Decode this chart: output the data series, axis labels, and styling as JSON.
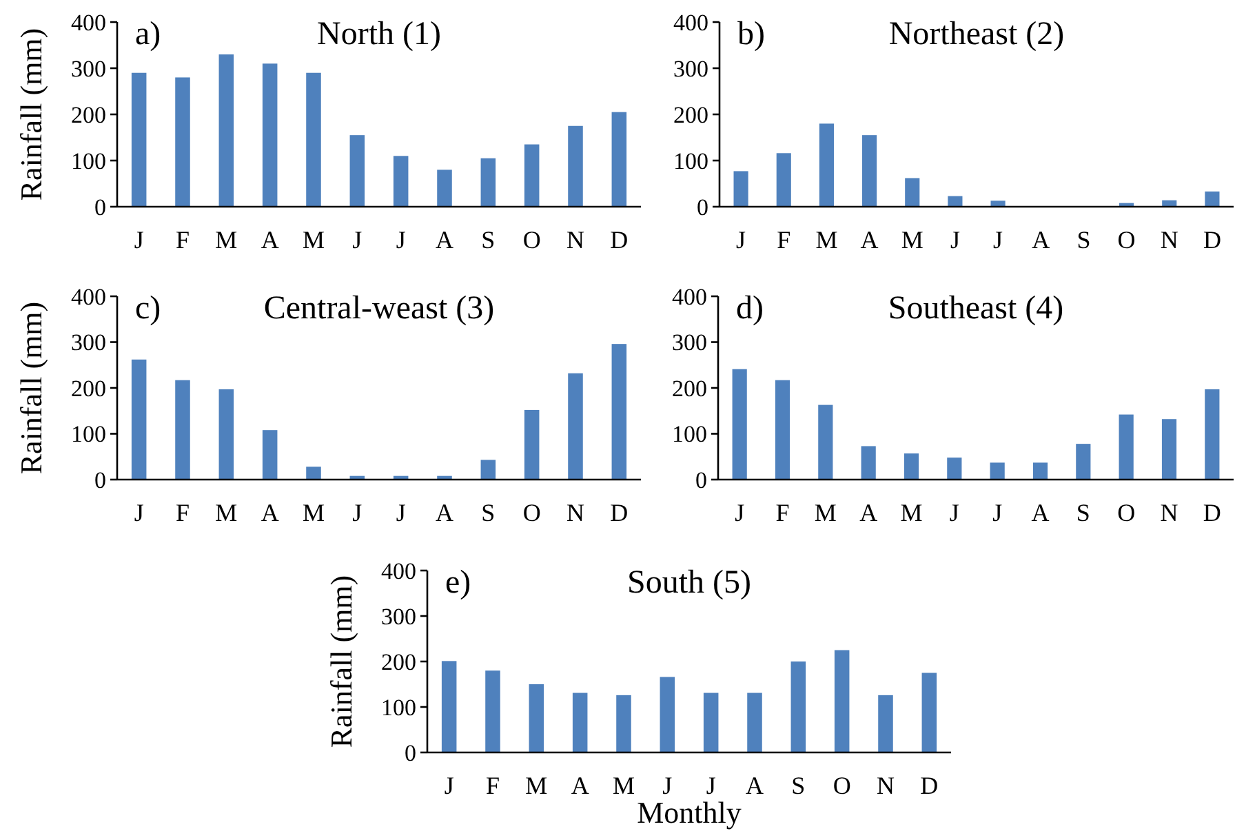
{
  "chart_data": [
    {
      "type": "bar",
      "title": "North (1)",
      "annotations": [
        "a)"
      ],
      "ylabel": "Rainfall (mm)",
      "categories": [
        "J",
        "F",
        "M",
        "A",
        "M",
        "J",
        "J",
        "A",
        "S",
        "O",
        "N",
        "D"
      ],
      "values": [
        290,
        280,
        330,
        310,
        290,
        155,
        110,
        80,
        105,
        135,
        175,
        205
      ],
      "color": "#4f81bd",
      "ylim": [
        0,
        400
      ],
      "yticks": [
        0,
        100,
        200,
        300,
        400
      ]
    },
    {
      "type": "bar",
      "title": "Northeast (2)",
      "annotations": [
        "b)"
      ],
      "categories": [
        "J",
        "F",
        "M",
        "A",
        "M",
        "J",
        "J",
        "A",
        "S",
        "O",
        "N",
        "D"
      ],
      "values": [
        77,
        116,
        180,
        155,
        62,
        23,
        13,
        0,
        0,
        8,
        14,
        33
      ],
      "color": "#4f81bd",
      "ylim": [
        0,
        400
      ],
      "yticks": [
        0,
        100,
        200,
        300,
        400
      ]
    },
    {
      "type": "bar",
      "title": "Central-weast (3)",
      "annotations": [
        "c)"
      ],
      "ylabel": "Rainfall (mm)",
      "categories": [
        "J",
        "F",
        "M",
        "A",
        "M",
        "J",
        "J",
        "A",
        "S",
        "O",
        "N",
        "D"
      ],
      "values": [
        262,
        217,
        197,
        108,
        28,
        8,
        8,
        8,
        43,
        152,
        232,
        296
      ],
      "color": "#4f81bd",
      "ylim": [
        0,
        400
      ],
      "yticks": [
        0,
        100,
        200,
        300,
        400
      ]
    },
    {
      "type": "bar",
      "title": "Southeast (4)",
      "annotations": [
        "d)"
      ],
      "categories": [
        "J",
        "F",
        "M",
        "A",
        "M",
        "J",
        "J",
        "A",
        "S",
        "O",
        "N",
        "D"
      ],
      "values": [
        241,
        217,
        163,
        73,
        57,
        48,
        37,
        37,
        78,
        142,
        132,
        197
      ],
      "color": "#4f81bd",
      "ylim": [
        0,
        400
      ],
      "yticks": [
        0,
        100,
        200,
        300,
        400
      ]
    },
    {
      "type": "bar",
      "title": "South (5)",
      "annotations": [
        "e)"
      ],
      "ylabel": "Rainfall (mm)",
      "xlabel": "Monthly",
      "categories": [
        "J",
        "F",
        "M",
        "A",
        "M",
        "J",
        "J",
        "A",
        "S",
        "O",
        "N",
        "D"
      ],
      "values": [
        201,
        180,
        150,
        131,
        126,
        166,
        131,
        131,
        200,
        225,
        126,
        175
      ],
      "color": "#4f81bd",
      "ylim": [
        0,
        400
      ],
      "yticks": [
        0,
        100,
        200,
        300,
        400
      ]
    }
  ]
}
